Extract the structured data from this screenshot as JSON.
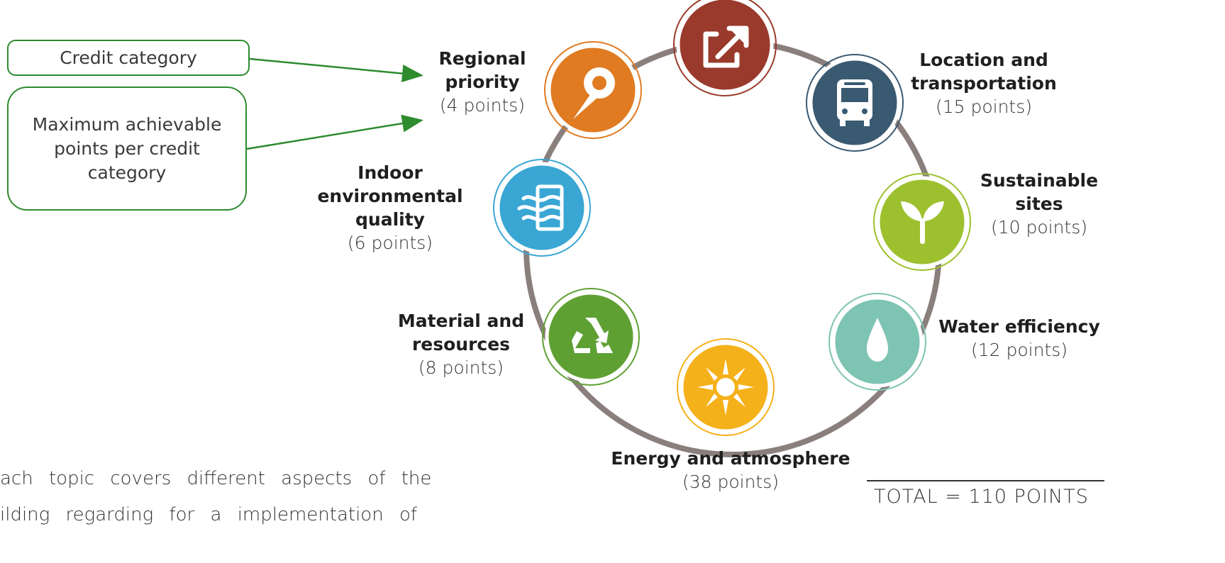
{
  "legend": {
    "category_label": "Credit category",
    "points_label": "Maximum achievable points per credit category",
    "arrow_color": "#2e8b2e"
  },
  "categories": [
    {
      "name": "Regional priority",
      "points": "(4 points)",
      "color": "#e07b22",
      "icon": "map-pin-icon"
    },
    {
      "name": "Location and transportation",
      "points": "(15 points)",
      "color": "#3a5a72",
      "icon": "bus-icon"
    },
    {
      "name": "Sustainable sites",
      "points": "(10 points)",
      "color": "#9dc02e",
      "icon": "sprout-icon"
    },
    {
      "name": "Water efficiency",
      "points": "(12 points)",
      "color": "#7dc4b2",
      "icon": "water-drop-icon"
    },
    {
      "name": "Energy and atmosphere",
      "points": "(38 points)",
      "color": "#f5b11a",
      "icon": "sun-icon"
    },
    {
      "name": "Material and resources",
      "points": "(8 points)",
      "color": "#5fa033",
      "icon": "recycle-icon"
    },
    {
      "name": "Indoor environmental quality",
      "points": "(6 points)",
      "color": "#39a6d4",
      "icon": "air-flow-icon"
    },
    {
      "name": "",
      "points": "",
      "color": "#9a3a2c",
      "icon": "external-link-icon"
    }
  ],
  "ring_color": "#8a7f7c",
  "total": "TOTAL = 110 POINTS",
  "body_text": {
    "line1": "ach topic covers different aspects of the",
    "line2": "ilding    regarding    for    a    implementation    of"
  }
}
